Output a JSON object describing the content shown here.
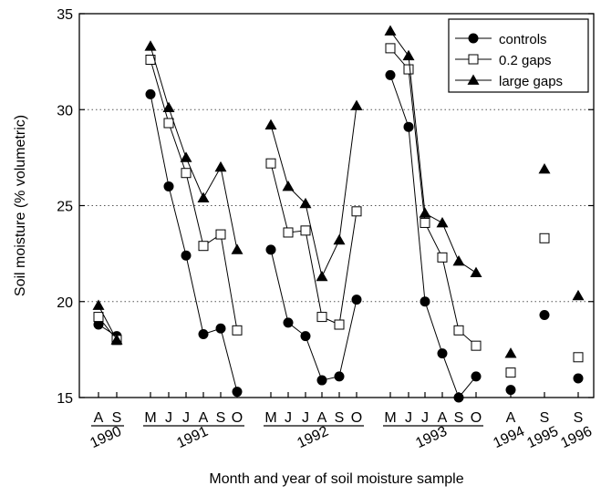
{
  "chart_data": {
    "type": "line",
    "ylabel": "Soil moisture (% volumetric)",
    "xlabel": "Month and year of soil moisture sample",
    "ylim": [
      15,
      35
    ],
    "yticks": [
      "15",
      "20",
      "25",
      "30",
      "35"
    ],
    "grid": "horizontal dotted at 20, 25, 30",
    "legend_position": "top-right",
    "x_slots": [
      {
        "month": "A",
        "year_group": 0
      },
      {
        "month": "S",
        "year_group": 0
      },
      {
        "month": "M",
        "year_group": 1
      },
      {
        "month": "J",
        "year_group": 1
      },
      {
        "month": "J",
        "year_group": 1
      },
      {
        "month": "A",
        "year_group": 1
      },
      {
        "month": "S",
        "year_group": 1
      },
      {
        "month": "O",
        "year_group": 1
      },
      {
        "month": "M",
        "year_group": 2
      },
      {
        "month": "J",
        "year_group": 2
      },
      {
        "month": "J",
        "year_group": 2
      },
      {
        "month": "A",
        "year_group": 2
      },
      {
        "month": "S",
        "year_group": 2
      },
      {
        "month": "O",
        "year_group": 2
      },
      {
        "month": "M",
        "year_group": 3
      },
      {
        "month": "J",
        "year_group": 3
      },
      {
        "month": "J",
        "year_group": 3
      },
      {
        "month": "A",
        "year_group": 3
      },
      {
        "month": "S",
        "year_group": 3
      },
      {
        "month": "O",
        "year_group": 3
      },
      {
        "month": "A",
        "year_group": 4
      },
      {
        "month": "S",
        "year_group": 5
      },
      {
        "month": "S",
        "year_group": 6
      }
    ],
    "year_groups": [
      {
        "label": "1990",
        "underline": true
      },
      {
        "label": "1991",
        "underline": true
      },
      {
        "label": "1992",
        "underline": true
      },
      {
        "label": "1993",
        "underline": true
      },
      {
        "label": "1994",
        "underline": false
      },
      {
        "label": "1995",
        "underline": false
      },
      {
        "label": "1996",
        "underline": false
      }
    ],
    "series": [
      {
        "name": "controls",
        "marker": "filled-circle",
        "values": [
          18.8,
          18.2,
          30.8,
          26.0,
          22.4,
          18.3,
          18.6,
          15.3,
          22.7,
          18.9,
          18.2,
          15.9,
          16.1,
          20.1,
          31.8,
          29.1,
          20.0,
          17.3,
          15.0,
          16.1,
          15.4,
          19.3,
          16.0
        ]
      },
      {
        "name": "0.2 gaps",
        "marker": "open-square",
        "values": [
          19.2,
          18.0,
          32.6,
          29.3,
          26.7,
          22.9,
          23.5,
          18.5,
          27.2,
          23.6,
          23.7,
          19.2,
          18.8,
          24.7,
          33.2,
          32.1,
          24.1,
          22.3,
          18.5,
          17.7,
          16.3,
          23.3,
          17.1
        ]
      },
      {
        "name": "large gaps",
        "marker": "filled-triangle",
        "values": [
          19.8,
          18.0,
          33.3,
          30.1,
          27.5,
          25.4,
          27.0,
          22.7,
          29.2,
          26.0,
          25.1,
          21.3,
          23.2,
          30.2,
          34.1,
          32.8,
          24.6,
          24.1,
          22.1,
          21.5,
          17.3,
          26.9,
          20.3
        ]
      }
    ],
    "connected_runs": [
      [
        0,
        1
      ],
      [
        2,
        7
      ],
      [
        8,
        13
      ],
      [
        14,
        19
      ]
    ]
  }
}
